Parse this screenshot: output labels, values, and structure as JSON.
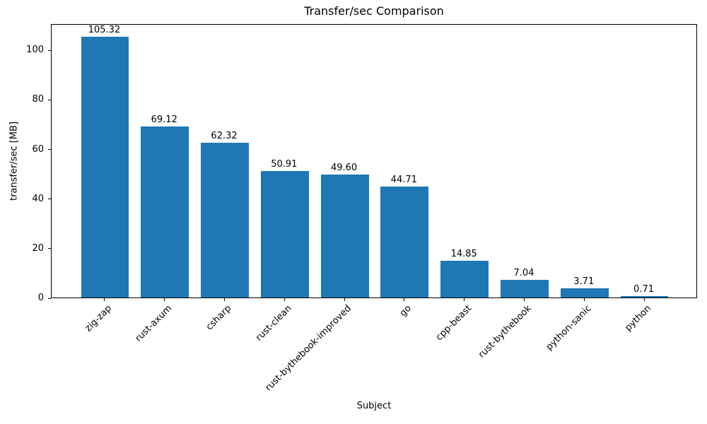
{
  "chart_data": {
    "type": "bar",
    "title": "Transfer/sec Comparison",
    "xlabel": "Subject",
    "ylabel": "transfer/sec [MB]",
    "categories": [
      "zig-zap",
      "rust-axum",
      "csharp",
      "rust-clean",
      "rust-bythebook-improved",
      "go",
      "cpp-beast",
      "rust-bythebook",
      "python-sanic",
      "python"
    ],
    "values": [
      105.32,
      69.12,
      62.32,
      50.91,
      49.6,
      44.71,
      14.85,
      7.04,
      3.71,
      0.71
    ],
    "value_labels": [
      "105.32",
      "69.12",
      "62.32",
      "50.91",
      "49.60",
      "44.71",
      "14.85",
      "7.04",
      "3.71",
      "0.71"
    ],
    "bar_color": "#1f77b4",
    "axis_color": "#000000",
    "text_color": "#000000",
    "background_color": "#ffffff",
    "ylim": [
      0,
      110.6
    ],
    "yticks": [
      0,
      20,
      40,
      60,
      80,
      100
    ],
    "bar_width_frac": 0.8,
    "x_margin": 0.49,
    "x_tick_rotation_deg": 45,
    "grid": false,
    "legend": null
  }
}
